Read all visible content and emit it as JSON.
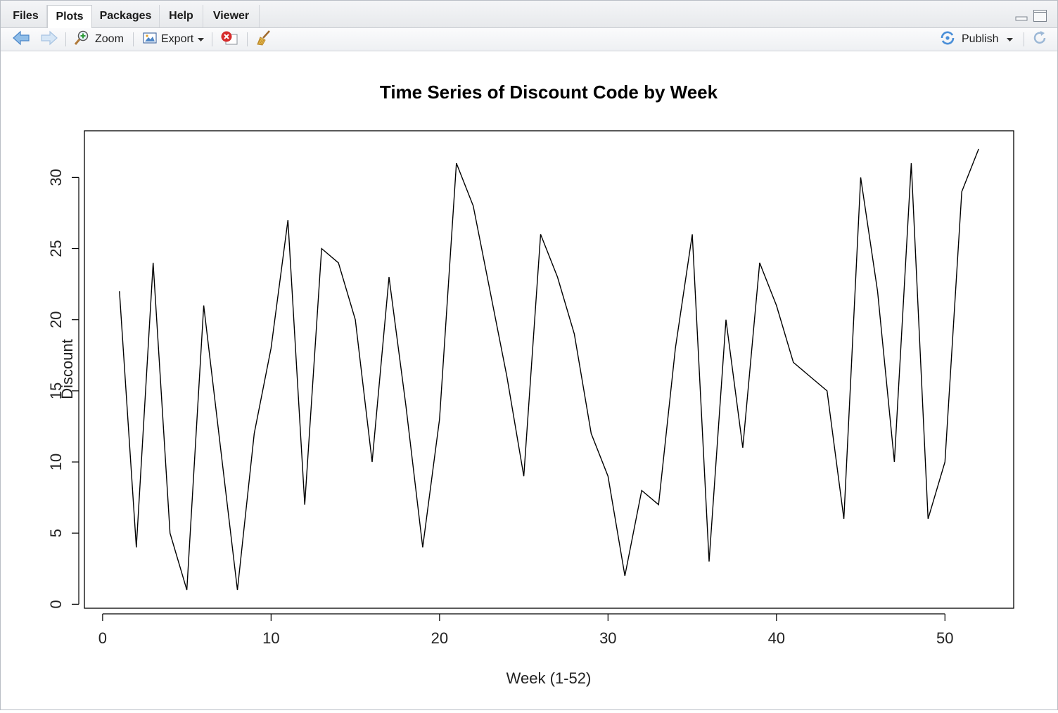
{
  "tabs": [
    {
      "label": "Files",
      "active": false
    },
    {
      "label": "Plots",
      "active": true
    },
    {
      "label": "Packages",
      "active": false
    },
    {
      "label": "Help",
      "active": false
    },
    {
      "label": "Viewer",
      "active": false
    }
  ],
  "toolbar": {
    "zoom_label": "Zoom",
    "export_label": "Export",
    "publish_label": "Publish",
    "back_icon": "arrow-left-icon",
    "forward_icon": "arrow-right-icon",
    "zoom_icon": "zoom-icon",
    "export_icon": "export-icon",
    "remove_icon": "remove-plot-icon",
    "clear_icon": "broom-icon",
    "publish_icon": "publish-icon",
    "refresh_icon": "refresh-icon"
  },
  "colors": {
    "line": "#000000",
    "accent_blue": "#4a8fd8",
    "remove_red": "#d62b2b"
  },
  "chart_data": {
    "type": "line",
    "title": "Time Series of Discount Code by Week",
    "xlabel": "Week (1-52)",
    "ylabel": "Discount",
    "xlim": [
      -1.08,
      54.08
    ],
    "ylim": [
      -0.28,
      33.28
    ],
    "x_ticks": [
      0,
      10,
      20,
      30,
      40,
      50
    ],
    "y_ticks": [
      0,
      5,
      10,
      15,
      20,
      25,
      30
    ],
    "grid": false,
    "x": [
      1,
      2,
      3,
      4,
      5,
      6,
      7,
      8,
      9,
      10,
      11,
      12,
      13,
      14,
      15,
      16,
      17,
      18,
      19,
      20,
      21,
      22,
      23,
      24,
      25,
      26,
      27,
      28,
      29,
      30,
      31,
      32,
      33,
      34,
      35,
      36,
      37,
      38,
      39,
      40,
      41,
      42,
      43,
      44,
      45,
      46,
      47,
      48,
      49,
      50,
      51,
      52
    ],
    "values": [
      22,
      4,
      24,
      5,
      1,
      21,
      11,
      1,
      12,
      18,
      27,
      7,
      25,
      24,
      20,
      10,
      23,
      14,
      4,
      13,
      31,
      28,
      22,
      16,
      9,
      26,
      23,
      19,
      12,
      9,
      2,
      8,
      7,
      18,
      26,
      3,
      20,
      11,
      24,
      21,
      17,
      16,
      15,
      6,
      30,
      22,
      10,
      31,
      6,
      10,
      29,
      32
    ]
  }
}
